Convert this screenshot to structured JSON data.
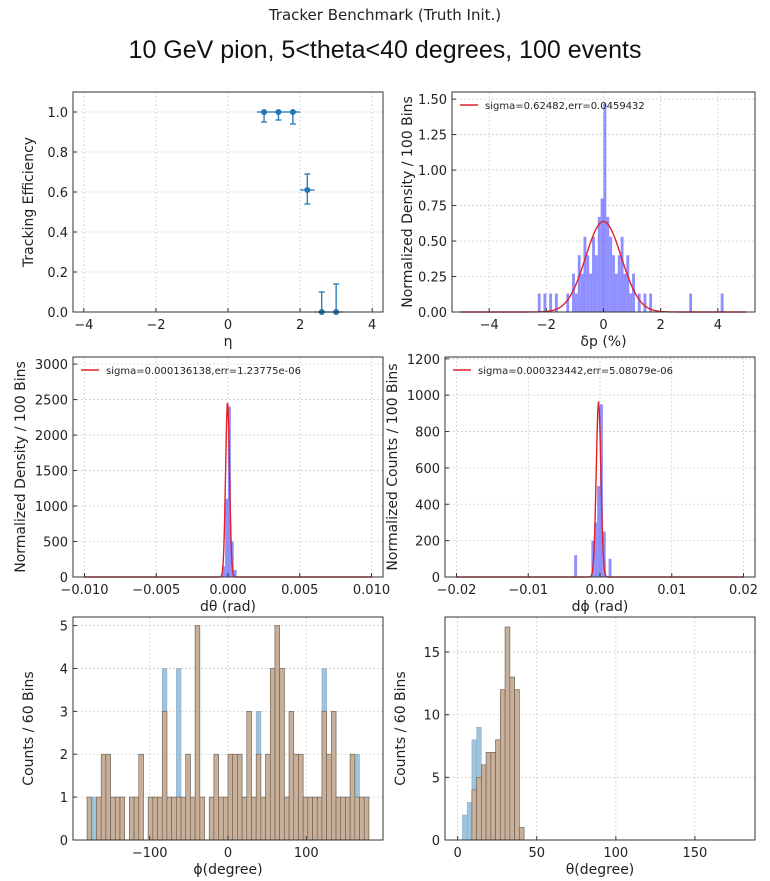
{
  "figure": {
    "suptitle": "Tracker Benchmark (Truth Init.)",
    "title": "10 GeV pion, 5<theta<40 degrees, 100 events"
  },
  "colors": {
    "errorbar": "#1f77b4",
    "hist_blue": "#6a6aff",
    "fit_red": "#e0202a",
    "hist_light": "#9ec3dd",
    "hist_tan": "#c9ae96",
    "grid": "#cfcfcf"
  },
  "chart_data": [
    {
      "id": "efficiency",
      "type": "scatter",
      "xlabel": "η",
      "ylabel": "Tracking Efficiency",
      "xlim": [
        -4.3,
        4.3
      ],
      "ylim": [
        0,
        1.1
      ],
      "xticks": [
        "−4",
        "−2",
        "0",
        "2",
        "4"
      ],
      "xtick_values": [
        -4,
        -2,
        0,
        2,
        4
      ],
      "yticks": [
        "0.0",
        "0.2",
        "0.4",
        "0.6",
        "0.8",
        "1.0"
      ],
      "ytick_values": [
        0,
        0.2,
        0.4,
        0.6,
        0.8,
        1.0
      ],
      "grid": true,
      "points": [
        {
          "x": 1.0,
          "y": 1.0,
          "xerr": 0.2,
          "yerr": [
            0.05,
            0.0
          ]
        },
        {
          "x": 1.4,
          "y": 1.0,
          "xerr": 0.2,
          "yerr": [
            0.04,
            0.0
          ]
        },
        {
          "x": 1.8,
          "y": 1.0,
          "xerr": 0.2,
          "yerr": [
            0.06,
            0.0
          ]
        },
        {
          "x": 2.2,
          "y": 0.61,
          "xerr": 0.2,
          "yerr": [
            0.07,
            0.08
          ]
        },
        {
          "x": 2.6,
          "y": 0.0,
          "xerr": 0.2,
          "yerr": [
            0.0,
            0.1
          ]
        },
        {
          "x": 3.0,
          "y": 0.0,
          "xerr": 0.2,
          "yerr": [
            0.0,
            0.14
          ]
        }
      ]
    },
    {
      "id": "dp",
      "type": "bar",
      "xlabel": "δp (%)",
      "ylabel": "Normalized Density / 100 Bins",
      "legend": "sigma=0.62482,err=0.0459432",
      "legend_position": "top-left",
      "xlim": [
        -5.3,
        5.3
      ],
      "ylim": [
        0,
        1.55
      ],
      "xticks": [
        "−4",
        "−2",
        "0",
        "2",
        "4"
      ],
      "xtick_values": [
        -4,
        -2,
        0,
        2,
        4
      ],
      "yticks": [
        "0.00",
        "0.25",
        "0.50",
        "0.75",
        "1.00",
        "1.25",
        "1.50"
      ],
      "ytick_values": [
        0,
        0.25,
        0.5,
        0.75,
        1.0,
        1.25,
        1.5
      ],
      "grid": true,
      "bin_width": 0.1,
      "bins": [
        [
          -2.3,
          0.13
        ],
        [
          -2.1,
          0.13
        ],
        [
          -1.9,
          0.13
        ],
        [
          -1.7,
          0.13
        ],
        [
          -1.3,
          0.13
        ],
        [
          -1.1,
          0.27
        ],
        [
          -1.0,
          0.13
        ],
        [
          -0.9,
          0.4
        ],
        [
          -0.8,
          0.27
        ],
        [
          -0.7,
          0.53
        ],
        [
          -0.6,
          0.4
        ],
        [
          -0.5,
          0.27
        ],
        [
          -0.4,
          0.53
        ],
        [
          -0.3,
          0.4
        ],
        [
          -0.2,
          0.67
        ],
        [
          -0.1,
          0.8
        ],
        [
          0.0,
          1.47
        ],
        [
          0.1,
          0.67
        ],
        [
          0.2,
          0.53
        ],
        [
          0.3,
          0.4
        ],
        [
          0.4,
          0.27
        ],
        [
          0.5,
          0.4
        ],
        [
          0.6,
          0.53
        ],
        [
          0.7,
          0.27
        ],
        [
          0.8,
          0.4
        ],
        [
          0.9,
          0.13
        ],
        [
          1.0,
          0.27
        ],
        [
          1.2,
          0.13
        ],
        [
          1.4,
          0.13
        ],
        [
          1.6,
          0.13
        ],
        [
          3.0,
          0.13
        ],
        [
          4.1,
          0.13
        ]
      ],
      "fit": {
        "mu": 0.0,
        "sigma": 0.62482,
        "amplitude": 0.638,
        "x_range": [
          -5,
          5
        ]
      }
    },
    {
      "id": "dtheta",
      "type": "bar",
      "xlabel": "dθ (rad)",
      "ylabel": "Normalized Density / 100 Bins",
      "legend": "sigma=0.000136138,err=1.23775e-06",
      "legend_position": "top-left",
      "xlim": [
        -0.0108,
        0.0108
      ],
      "ylim": [
        0,
        3100
      ],
      "xticks": [
        "−0.010",
        "−0.005",
        "0.000",
        "0.005",
        "0.010"
      ],
      "xtick_values": [
        -0.01,
        -0.005,
        0.0,
        0.005,
        0.01
      ],
      "yticks": [
        "0",
        "500",
        "1000",
        "1500",
        "2000",
        "2500",
        "3000"
      ],
      "ytick_values": [
        0,
        500,
        1000,
        1500,
        2000,
        2500,
        3000
      ],
      "grid": true,
      "bin_width": 0.0002,
      "bins": [
        [
          -0.0004,
          150
        ],
        [
          -0.0002,
          1100
        ],
        [
          0.0,
          2400
        ],
        [
          0.0002,
          500
        ],
        [
          0.0004,
          100
        ]
      ],
      "fit": {
        "mu": -3e-05,
        "sigma": 0.000136138,
        "amplitude": 2480,
        "x_range": [
          -0.01,
          0.01
        ]
      }
    },
    {
      "id": "dphi",
      "type": "bar",
      "xlabel": "dϕ (rad)",
      "ylabel": "Normalized Counts / 100 Bins",
      "legend": "sigma=0.000323442,err=5.08079e-06",
      "legend_position": "top-left",
      "xlim": [
        -0.0216,
        0.0216
      ],
      "ylim": [
        0,
        1210
      ],
      "xticks": [
        "−0.02",
        "−0.01",
        "0.00",
        "0.01",
        "0.02"
      ],
      "xtick_values": [
        -0.02,
        -0.01,
        0.0,
        0.01,
        0.02
      ],
      "yticks": [
        "0",
        "200",
        "400",
        "600",
        "800",
        "1000",
        "1200"
      ],
      "ytick_values": [
        0,
        200,
        400,
        600,
        800,
        1000,
        1200
      ],
      "grid": true,
      "bin_width": 0.0004,
      "bins": [
        [
          -0.0036,
          120
        ],
        [
          -0.0012,
          200
        ],
        [
          -0.0008,
          300
        ],
        [
          -0.0004,
          500
        ],
        [
          0.0,
          950
        ],
        [
          0.0004,
          250
        ],
        [
          0.0012,
          100
        ]
      ],
      "fit": {
        "mu": -0.0002,
        "sigma": 0.000323442,
        "amplitude": 965,
        "x_range": [
          -0.02,
          0.02
        ]
      }
    },
    {
      "id": "phi",
      "type": "bar",
      "xlabel": "ϕ(degree)",
      "ylabel": "Counts / 60 Bins",
      "xlim": [
        -198,
        198
      ],
      "ylim": [
        0,
        5.2
      ],
      "xticks": [
        "−100",
        "0",
        "100"
      ],
      "xtick_values": [
        -100,
        0,
        100
      ],
      "yticks": [
        "0",
        "1",
        "2",
        "3",
        "4",
        "5"
      ],
      "ytick_values": [
        0,
        1,
        2,
        3,
        4,
        5
      ],
      "grid": true,
      "bin_width": 6,
      "series": [
        {
          "name": "",
          "bins": [
            [
              -180,
              1
            ],
            [
              -174,
              1
            ],
            [
              -168,
              1
            ],
            [
              -162,
              2
            ],
            [
              -156,
              2
            ],
            [
              -150,
              1
            ],
            [
              -144,
              1
            ],
            [
              -138,
              1
            ],
            [
              -126,
              1
            ],
            [
              -120,
              1
            ],
            [
              -114,
              2
            ],
            [
              -102,
              1
            ],
            [
              -96,
              1
            ],
            [
              -90,
              1
            ],
            [
              -84,
              4
            ],
            [
              -78,
              1
            ],
            [
              -72,
              1
            ],
            [
              -66,
              4
            ],
            [
              -60,
              1
            ],
            [
              -54,
              2
            ],
            [
              -48,
              1
            ],
            [
              -42,
              5
            ],
            [
              -36,
              1
            ],
            [
              -24,
              1
            ],
            [
              -18,
              2
            ],
            [
              -12,
              1
            ],
            [
              -6,
              1
            ],
            [
              0,
              2
            ],
            [
              6,
              2
            ],
            [
              12,
              2
            ],
            [
              18,
              1
            ],
            [
              24,
              3
            ],
            [
              30,
              1
            ],
            [
              36,
              3
            ],
            [
              42,
              1
            ],
            [
              48,
              2
            ],
            [
              54,
              4
            ],
            [
              60,
              5
            ],
            [
              66,
              4
            ],
            [
              72,
              1
            ],
            [
              78,
              3
            ],
            [
              84,
              2
            ],
            [
              90,
              2
            ],
            [
              96,
              1
            ],
            [
              102,
              1
            ],
            [
              108,
              1
            ],
            [
              114,
              1
            ],
            [
              120,
              4
            ],
            [
              126,
              2
            ],
            [
              132,
              3
            ],
            [
              138,
              1
            ],
            [
              144,
              1
            ],
            [
              150,
              1
            ],
            [
              156,
              2
            ],
            [
              162,
              2
            ],
            [
              168,
              1
            ],
            [
              174,
              1
            ]
          ]
        },
        {
          "name": "",
          "bins": [
            [
              -180,
              1
            ],
            [
              -168,
              1
            ],
            [
              -162,
              2
            ],
            [
              -156,
              2
            ],
            [
              -150,
              1
            ],
            [
              -144,
              1
            ],
            [
              -138,
              1
            ],
            [
              -126,
              1
            ],
            [
              -120,
              1
            ],
            [
              -114,
              2
            ],
            [
              -102,
              1
            ],
            [
              -96,
              1
            ],
            [
              -90,
              1
            ],
            [
              -84,
              3
            ],
            [
              -78,
              1
            ],
            [
              -72,
              1
            ],
            [
              -66,
              1
            ],
            [
              -60,
              1
            ],
            [
              -54,
              2
            ],
            [
              -48,
              1
            ],
            [
              -42,
              5
            ],
            [
              -36,
              1
            ],
            [
              -24,
              1
            ],
            [
              -18,
              2
            ],
            [
              -12,
              1
            ],
            [
              -6,
              1
            ],
            [
              0,
              2
            ],
            [
              6,
              2
            ],
            [
              12,
              2
            ],
            [
              18,
              1
            ],
            [
              24,
              3
            ],
            [
              30,
              1
            ],
            [
              36,
              2
            ],
            [
              42,
              1
            ],
            [
              48,
              2
            ],
            [
              54,
              4
            ],
            [
              60,
              5
            ],
            [
              66,
              4
            ],
            [
              72,
              1
            ],
            [
              78,
              3
            ],
            [
              84,
              2
            ],
            [
              90,
              2
            ],
            [
              96,
              1
            ],
            [
              102,
              1
            ],
            [
              108,
              1
            ],
            [
              114,
              1
            ],
            [
              120,
              3
            ],
            [
              126,
              2
            ],
            [
              132,
              3
            ],
            [
              138,
              1
            ],
            [
              144,
              1
            ],
            [
              150,
              1
            ],
            [
              156,
              2
            ],
            [
              162,
              1
            ],
            [
              168,
              1
            ],
            [
              174,
              1
            ]
          ]
        }
      ]
    },
    {
      "id": "theta",
      "type": "bar",
      "xlabel": "θ(degree)",
      "ylabel": "Counts / 60 Bins",
      "xlim": [
        -8,
        188
      ],
      "ylim": [
        0,
        17.8
      ],
      "xticks": [
        "0",
        "50",
        "100",
        "150"
      ],
      "xtick_values": [
        0,
        50,
        100,
        150
      ],
      "yticks": [
        "0",
        "5",
        "10",
        "15"
      ],
      "ytick_values": [
        0,
        5,
        10,
        15
      ],
      "grid": true,
      "bin_width": 3,
      "series": [
        {
          "name": "",
          "bins": [
            [
              3,
              2
            ],
            [
              6,
              3
            ],
            [
              9,
              8
            ],
            [
              12,
              9
            ],
            [
              15,
              6
            ],
            [
              18,
              7
            ],
            [
              21,
              7
            ],
            [
              24,
              8
            ],
            [
              27,
              12
            ],
            [
              30,
              17
            ],
            [
              33,
              13
            ],
            [
              36,
              12
            ],
            [
              39,
              1
            ]
          ]
        },
        {
          "name": "",
          "bins": [
            [
              9,
              4
            ],
            [
              12,
              5
            ],
            [
              15,
              6
            ],
            [
              18,
              7
            ],
            [
              21,
              7
            ],
            [
              24,
              8
            ],
            [
              27,
              12
            ],
            [
              30,
              17
            ],
            [
              33,
              13
            ],
            [
              36,
              12
            ],
            [
              39,
              1
            ]
          ]
        }
      ]
    }
  ]
}
